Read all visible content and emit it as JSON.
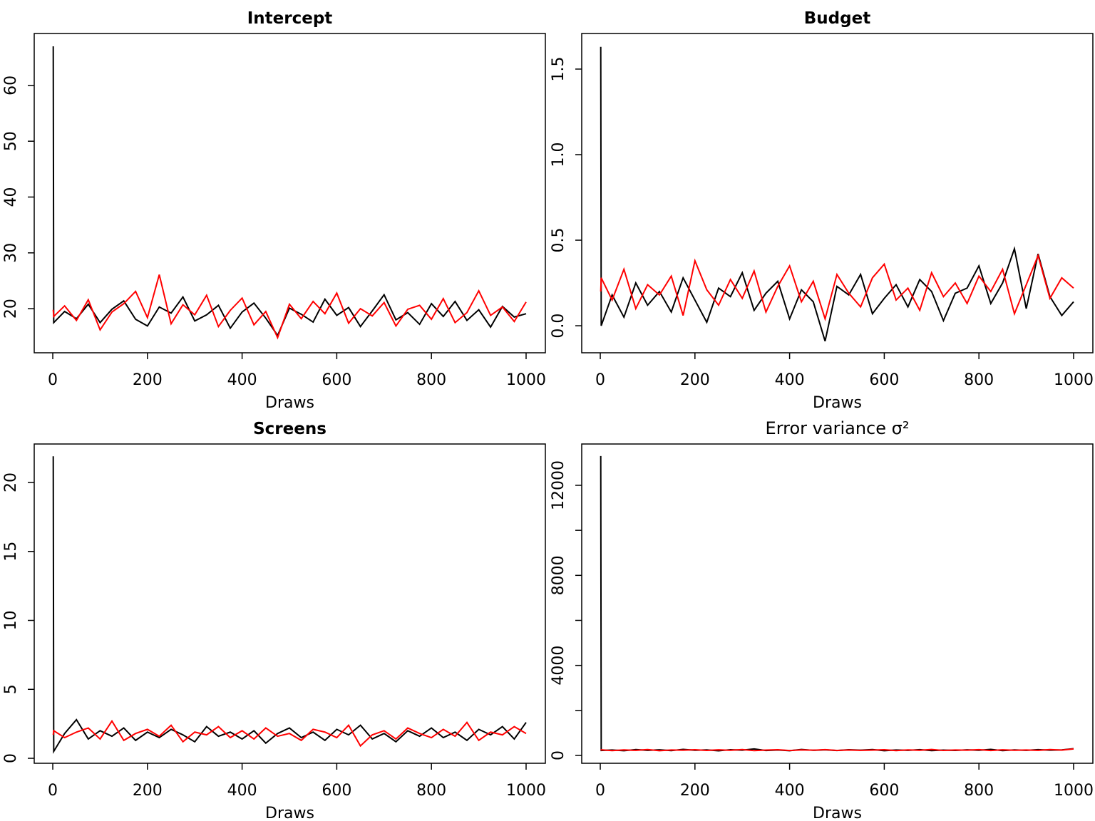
{
  "chart_data": [
    {
      "type": "line",
      "title": "Intercept",
      "title_weight": "bold",
      "xlabel": "Draws",
      "x": [
        1,
        2,
        25,
        50,
        75,
        100,
        125,
        150,
        175,
        200,
        225,
        250,
        275,
        300,
        325,
        350,
        375,
        400,
        425,
        450,
        475,
        500,
        525,
        550,
        575,
        600,
        625,
        650,
        675,
        700,
        725,
        750,
        775,
        800,
        825,
        850,
        875,
        900,
        925,
        950,
        975,
        1000
      ],
      "series": [
        {
          "color": "#000000",
          "values": [
            67,
            17.5,
            19.5,
            18.2,
            20.8,
            17.5,
            19.9,
            21.4,
            18.1,
            16.9,
            20.3,
            19.2,
            22.1,
            17.8,
            18.9,
            20.6,
            16.5,
            19.4,
            21.0,
            18.3,
            15.2,
            20.1,
            19.0,
            17.6,
            21.7,
            18.8,
            20.2,
            16.8,
            19.6,
            22.5,
            18.0,
            19.3,
            17.2,
            20.9,
            18.6,
            21.3,
            17.9,
            19.8,
            16.7,
            20.4,
            18.5,
            19.1
          ]
        },
        {
          "color": "#ff0000",
          "values": [
            19.8,
            18.6,
            20.5,
            17.9,
            21.6,
            16.2,
            19.4,
            20.9,
            23.1,
            18.4,
            26.1,
            17.3,
            20.7,
            18.9,
            22.4,
            16.8,
            19.7,
            21.9,
            17.1,
            19.5,
            14.8,
            20.8,
            18.2,
            21.3,
            19.1,
            22.8,
            17.4,
            20.0,
            18.7,
            21.1,
            16.9,
            19.9,
            20.6,
            18.1,
            21.8,
            17.5,
            19.3,
            23.2,
            18.8,
            20.3,
            17.7,
            21.2
          ]
        }
      ],
      "xlim": [
        -39.2,
        1040.7
      ],
      "xticks": [
        0,
        200,
        400,
        600,
        800,
        1000
      ],
      "ylim": [
        12.1,
        69.3
      ],
      "yticks": [
        20,
        30,
        40,
        50,
        60
      ]
    },
    {
      "type": "line",
      "title": "Budget",
      "title_weight": "bold",
      "xlabel": "Draws",
      "x": [
        1,
        2,
        25,
        50,
        75,
        100,
        125,
        150,
        175,
        200,
        225,
        250,
        275,
        300,
        325,
        350,
        375,
        400,
        425,
        450,
        475,
        500,
        525,
        550,
        575,
        600,
        625,
        650,
        675,
        700,
        725,
        750,
        775,
        800,
        825,
        850,
        875,
        900,
        925,
        950,
        975,
        1000
      ],
      "series": [
        {
          "color": "#000000",
          "values": [
            1.63,
            0.0,
            0.18,
            0.05,
            0.25,
            0.12,
            0.2,
            0.08,
            0.28,
            0.15,
            0.02,
            0.22,
            0.17,
            0.31,
            0.09,
            0.19,
            0.26,
            0.04,
            0.21,
            0.14,
            -0.09,
            0.23,
            0.18,
            0.3,
            0.07,
            0.16,
            0.24,
            0.11,
            0.27,
            0.2,
            0.03,
            0.19,
            0.22,
            0.35,
            0.13,
            0.25,
            0.45,
            0.1,
            0.42,
            0.17,
            0.06,
            0.14
          ]
        },
        {
          "color": "#ff0000",
          "values": [
            0.2,
            0.28,
            0.15,
            0.33,
            0.1,
            0.24,
            0.18,
            0.29,
            0.06,
            0.38,
            0.21,
            0.12,
            0.27,
            0.16,
            0.32,
            0.08,
            0.23,
            0.35,
            0.14,
            0.26,
            0.04,
            0.3,
            0.19,
            0.11,
            0.28,
            0.36,
            0.15,
            0.22,
            0.09,
            0.31,
            0.17,
            0.25,
            0.13,
            0.29,
            0.2,
            0.33,
            0.07,
            0.24,
            0.41,
            0.16,
            0.28,
            0.22
          ]
        }
      ],
      "xlim": [
        -39.2,
        1040.7
      ],
      "xticks": [
        0,
        200,
        400,
        600,
        800,
        1000
      ],
      "ylim": [
        -0.158,
        1.708
      ],
      "yticks": [
        {
          "value": 0,
          "label": "0.0"
        },
        0.5,
        {
          "value": 1,
          "label": "1.0"
        },
        1.5
      ]
    },
    {
      "type": "line",
      "title": "Screens",
      "title_weight": "bold",
      "xlabel": "Draws",
      "x": [
        1,
        2,
        25,
        50,
        75,
        100,
        125,
        150,
        175,
        200,
        225,
        250,
        275,
        300,
        325,
        350,
        375,
        400,
        425,
        450,
        475,
        500,
        525,
        550,
        575,
        600,
        625,
        650,
        675,
        700,
        725,
        750,
        775,
        800,
        825,
        850,
        875,
        900,
        925,
        950,
        975,
        1000
      ],
      "series": [
        {
          "color": "#000000",
          "values": [
            21.9,
            0.5,
            1.8,
            2.8,
            1.4,
            2.0,
            1.6,
            2.2,
            1.3,
            1.9,
            1.5,
            2.1,
            1.7,
            1.2,
            2.3,
            1.6,
            1.9,
            1.4,
            2.0,
            1.1,
            1.8,
            2.2,
            1.5,
            1.9,
            1.3,
            2.1,
            1.7,
            2.4,
            1.4,
            1.8,
            1.2,
            2.0,
            1.6,
            2.2,
            1.5,
            1.9,
            1.3,
            2.1,
            1.7,
            2.3,
            1.4,
            2.6
          ]
        },
        {
          "color": "#ff0000",
          "values": [
            1.7,
            2.0,
            1.5,
            1.9,
            2.2,
            1.4,
            2.7,
            1.3,
            1.8,
            2.1,
            1.6,
            2.4,
            1.2,
            1.9,
            1.7,
            2.3,
            1.5,
            2.0,
            1.4,
            2.2,
            1.6,
            1.8,
            1.3,
            2.1,
            1.9,
            1.5,
            2.4,
            0.9,
            1.7,
            2.0,
            1.4,
            2.2,
            1.8,
            1.5,
            2.1,
            1.6,
            2.6,
            1.3,
            1.9,
            1.7,
            2.3,
            1.8
          ]
        }
      ],
      "xlim": [
        -39.2,
        1040.7
      ],
      "xticks": [
        0,
        200,
        400,
        600,
        800,
        1000
      ],
      "ylim": [
        -0.36,
        22.79
      ],
      "yticks": [
        0,
        5,
        10,
        15,
        20
      ]
    },
    {
      "type": "line",
      "title": "Error variance σ²",
      "title_weight": "normal",
      "xlabel": "Draws",
      "x": [
        1,
        2,
        25,
        50,
        75,
        100,
        125,
        150,
        175,
        200,
        225,
        250,
        275,
        300,
        325,
        350,
        375,
        400,
        425,
        450,
        475,
        500,
        525,
        550,
        575,
        600,
        625,
        650,
        675,
        700,
        725,
        750,
        775,
        800,
        825,
        850,
        875,
        900,
        925,
        950,
        975,
        1000
      ],
      "series": [
        {
          "color": "#000000",
          "values": [
            13300,
            220,
            240,
            210,
            260,
            225,
            250,
            215,
            270,
            230,
            245,
            205,
            255,
            235,
            290,
            220,
            240,
            210,
            265,
            228,
            248,
            218,
            252,
            232,
            262,
            212,
            242,
            226,
            258,
            216,
            238,
            222,
            250,
            230,
            268,
            214,
            244,
            224,
            256,
            234,
            246,
            300
          ]
        },
        {
          "color": "#ff0000",
          "values": [
            230,
            250,
            215,
            245,
            225,
            260,
            210,
            240,
            235,
            255,
            220,
            248,
            228,
            262,
            212,
            238,
            252,
            218,
            244,
            232,
            258,
            222,
            242,
            226,
            236,
            254,
            214,
            246,
            230,
            264,
            220,
            240,
            234,
            256,
            218,
            250,
            228,
            242,
            224,
            260,
            238,
            290
          ]
        }
      ],
      "xlim": [
        -39.2,
        1040.7
      ],
      "xticks": [
        0,
        200,
        400,
        600,
        800,
        1000
      ],
      "ylim": [
        -348,
        13836
      ],
      "yticks": [
        0,
        {
          "value": 2000,
          "label": null
        },
        4000,
        {
          "value": 6000,
          "label": null
        },
        8000,
        {
          "value": 10000,
          "label": null
        },
        12000
      ]
    }
  ]
}
